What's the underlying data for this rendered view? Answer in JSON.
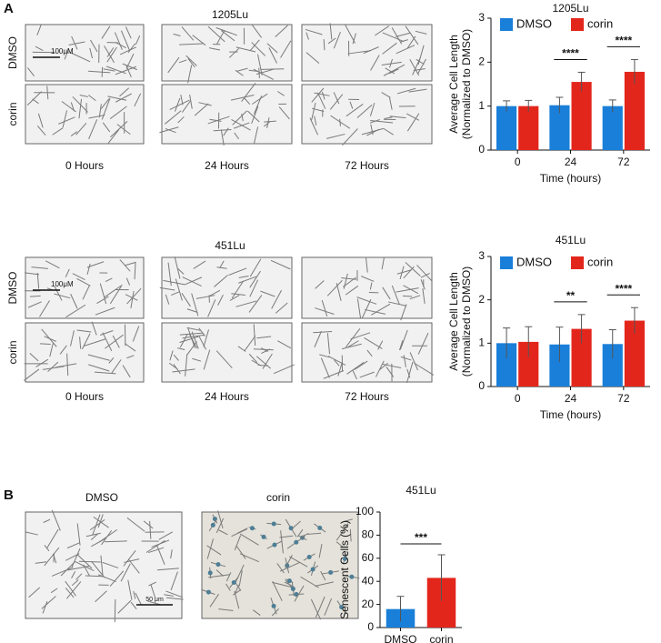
{
  "panels": {
    "A": {
      "label": "A",
      "sets": [
        {
          "title": "1205Lu",
          "rows": [
            "DMSO",
            "corin"
          ],
          "columns": [
            "0 Hours",
            "24 Hours",
            "72 Hours"
          ],
          "scale_bar": "100μM"
        },
        {
          "title": "451Lu",
          "rows": [
            "DMSO",
            "corin"
          ],
          "columns": [
            "0 Hours",
            "24 Hours",
            "72 Hours"
          ],
          "scale_bar": "100μM"
        }
      ]
    },
    "B": {
      "label": "B",
      "images": [
        "DMSO",
        "corin"
      ],
      "scale_bar": "50 μm"
    }
  },
  "chart_data": [
    {
      "type": "bar",
      "title": "1205Lu",
      "categories": [
        "0",
        "24",
        "72"
      ],
      "xlabel": "Time (hours)",
      "ylabel": [
        "Average Cell Length",
        "(Normalized to DMSO)"
      ],
      "series": [
        {
          "name": "DMSO",
          "color": "#1a7fd9",
          "values": [
            1.0,
            1.02,
            1.0
          ],
          "errors": [
            0.12,
            0.18,
            0.14
          ]
        },
        {
          "name": "corin",
          "color": "#e3261c",
          "values": [
            1.0,
            1.55,
            1.78
          ],
          "errors": [
            0.13,
            0.22,
            0.28
          ]
        }
      ],
      "ylim": [
        0,
        3
      ],
      "yticks": [
        0,
        1,
        2,
        3
      ],
      "annotations": [
        "****",
        "****"
      ],
      "legend": "top"
    },
    {
      "type": "bar",
      "title": "451Lu",
      "categories": [
        "0",
        "24",
        "72"
      ],
      "xlabel": "Time (hours)",
      "ylabel": [
        "Average Cell Length",
        "(Normalized to DMSO)"
      ],
      "series": [
        {
          "name": "DMSO",
          "color": "#1a7fd9",
          "values": [
            1.0,
            0.97,
            0.98
          ],
          "errors": [
            0.35,
            0.4,
            0.33
          ]
        },
        {
          "name": "corin",
          "color": "#e3261c",
          "values": [
            1.03,
            1.33,
            1.52
          ],
          "errors": [
            0.35,
            0.33,
            0.3
          ]
        }
      ],
      "ylim": [
        0,
        3
      ],
      "yticks": [
        0,
        1,
        2,
        3
      ],
      "annotations": [
        "**",
        "****"
      ],
      "legend": "top"
    },
    {
      "type": "bar",
      "title": "451Lu",
      "categories": [
        "DMSO",
        "corin"
      ],
      "ylabel": [
        "Senescent Cells (%)"
      ],
      "values": [
        16,
        43
      ],
      "errors": [
        11,
        20
      ],
      "colors": [
        "#1a7fd9",
        "#e3261c"
      ],
      "ylim": [
        0,
        100
      ],
      "yticks": [
        0,
        20,
        40,
        60,
        80,
        100
      ],
      "annotations": [
        "***"
      ]
    }
  ]
}
